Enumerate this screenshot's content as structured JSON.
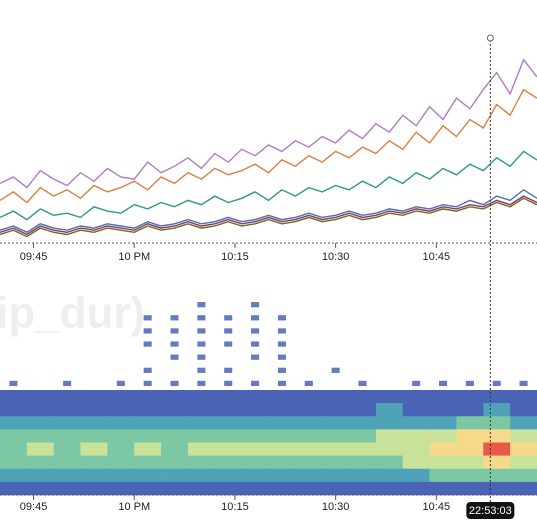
{
  "chart_data": [
    {
      "type": "line",
      "x": [
        "21:40",
        "21:42",
        "21:44",
        "21:46",
        "21:48",
        "21:50",
        "21:52",
        "21:54",
        "21:56",
        "21:58",
        "22:00",
        "22:02",
        "22:04",
        "22:06",
        "22:08",
        "22:10",
        "22:12",
        "22:14",
        "22:16",
        "22:18",
        "22:20",
        "22:22",
        "22:24",
        "22:26",
        "22:28",
        "22:30",
        "22:32",
        "22:34",
        "22:36",
        "22:38",
        "22:40",
        "22:42",
        "22:44",
        "22:46",
        "22:48",
        "22:50",
        "22:52",
        "22:54",
        "22:56",
        "22:58",
        "23:00"
      ],
      "xlim": [
        "21:40",
        "23:00"
      ],
      "xticks": [
        {
          "value": "21:45",
          "label": "09:45"
        },
        {
          "value": "22:00",
          "label": "10 PM"
        },
        {
          "value": "22:15",
          "label": "10:15"
        },
        {
          "value": "22:30",
          "label": "10:30"
        },
        {
          "value": "22:45",
          "label": "10:45"
        }
      ],
      "ylim": [
        0,
        100
      ],
      "series": [
        {
          "color": "#b07cc6",
          "values": [
            28,
            31,
            26,
            34,
            30,
            27,
            33,
            29,
            35,
            31,
            30,
            38,
            33,
            36,
            40,
            35,
            42,
            38,
            44,
            41,
            46,
            43,
            48,
            45,
            50,
            47,
            53,
            49,
            56,
            52,
            60,
            55,
            64,
            58,
            68,
            63,
            72,
            80,
            70,
            86,
            78
          ]
        },
        {
          "color": "#d9803f",
          "values": [
            20,
            24,
            19,
            26,
            22,
            25,
            21,
            27,
            24,
            26,
            29,
            25,
            31,
            28,
            33,
            30,
            35,
            32,
            34,
            37,
            33,
            39,
            36,
            41,
            38,
            43,
            40,
            45,
            42,
            48,
            44,
            52,
            47,
            55,
            50,
            58,
            54,
            65,
            60,
            72,
            68
          ]
        },
        {
          "color": "#2a9a8a",
          "values": [
            12,
            15,
            11,
            16,
            13,
            14,
            12,
            17,
            15,
            14,
            18,
            16,
            19,
            17,
            20,
            18,
            22,
            19,
            21,
            24,
            20,
            25,
            22,
            26,
            24,
            27,
            25,
            29,
            26,
            31,
            28,
            33,
            30,
            35,
            32,
            37,
            34,
            40,
            36,
            43,
            39
          ]
        },
        {
          "color": "#4a6fbf",
          "values": [
            6,
            8,
            5,
            9,
            7,
            6,
            8,
            7,
            9,
            8,
            7,
            10,
            8,
            9,
            11,
            9,
            10,
            12,
            10,
            11,
            13,
            11,
            12,
            14,
            12,
            13,
            15,
            13,
            14,
            16,
            15,
            17,
            16,
            18,
            17,
            20,
            18,
            22,
            20,
            25,
            21
          ]
        },
        {
          "color": "#8b3a5a",
          "values": [
            5,
            7,
            4,
            8,
            6,
            5,
            7,
            6,
            8,
            7,
            6,
            9,
            7,
            8,
            10,
            8,
            9,
            11,
            9,
            10,
            12,
            10,
            11,
            13,
            11,
            12,
            14,
            12,
            13,
            15,
            14,
            16,
            15,
            17,
            16,
            18,
            17,
            20,
            18,
            22,
            19
          ]
        },
        {
          "color": "#6b6b2a",
          "values": [
            4,
            6,
            3,
            7,
            5,
            4,
            6,
            5,
            7,
            6,
            5,
            8,
            6,
            7,
            9,
            7,
            8,
            10,
            8,
            9,
            11,
            9,
            10,
            12,
            10,
            11,
            13,
            11,
            12,
            14,
            13,
            15,
            14,
            16,
            15,
            17,
            16,
            19,
            17,
            21,
            18
          ]
        }
      ]
    },
    {
      "type": "heatmap",
      "title": "ip_dur)",
      "xlim": [
        "21:40",
        "23:00"
      ],
      "xticks": [
        {
          "value": "21:45",
          "label": "09:45"
        },
        {
          "value": "22:00",
          "label": "10 PM"
        },
        {
          "value": "22:15",
          "label": "10:15"
        },
        {
          "value": "22:30",
          "label": "10:30"
        },
        {
          "value": "22:45",
          "label": "10:45"
        }
      ],
      "colorscale": [
        "#4a64b5",
        "#4fa3b8",
        "#7cc8a4",
        "#c8e29a",
        "#f6d98a",
        "#e8594a"
      ],
      "values": [
        [
          0,
          0,
          0,
          0,
          0,
          0,
          0,
          0,
          0,
          0,
          0,
          0,
          0,
          0,
          0,
          0,
          0,
          0,
          0,
          0
        ],
        [
          0,
          0,
          0,
          0,
          0,
          0,
          0,
          1,
          0,
          1,
          0,
          0,
          0,
          0,
          0,
          0,
          0,
          0,
          0,
          0
        ],
        [
          0,
          0,
          0,
          0,
          0,
          1,
          1,
          1,
          1,
          1,
          1,
          0,
          0,
          0,
          0,
          0,
          0,
          0,
          0,
          0
        ],
        [
          0,
          0,
          0,
          0,
          0,
          1,
          1,
          1,
          1,
          1,
          1,
          0,
          0,
          0,
          0,
          0,
          0,
          0,
          0,
          0
        ],
        [
          0,
          0,
          0,
          0,
          0,
          1,
          1,
          1,
          1,
          1,
          1,
          0,
          0,
          0,
          0,
          0,
          0,
          0,
          0,
          0
        ],
        [
          0,
          0,
          0,
          0,
          0,
          0,
          1,
          1,
          0,
          1,
          1,
          0,
          0,
          0,
          0,
          0,
          0,
          0,
          0,
          0
        ],
        [
          0,
          0,
          0,
          0,
          0,
          1,
          0,
          1,
          1,
          0,
          1,
          0,
          1,
          0,
          0,
          0,
          0,
          0,
          0,
          0
        ],
        [
          1,
          0,
          1,
          0,
          1,
          1,
          1,
          1,
          1,
          1,
          1,
          1,
          0,
          1,
          0,
          1,
          1,
          1,
          1,
          1
        ],
        [
          1,
          1,
          1,
          1,
          1,
          1,
          1,
          1,
          1,
          1,
          1,
          1,
          1,
          1,
          1,
          1,
          1,
          1,
          1,
          1
        ],
        [
          1,
          1,
          1,
          1,
          1,
          1,
          1,
          1,
          1,
          1,
          1,
          1,
          1,
          1,
          2,
          1,
          1,
          1,
          2,
          1
        ],
        [
          2,
          2,
          2,
          2,
          2,
          2,
          2,
          2,
          2,
          2,
          2,
          2,
          2,
          2,
          2,
          2,
          2,
          3,
          3,
          2
        ],
        [
          3,
          3,
          3,
          3,
          3,
          3,
          3,
          3,
          3,
          3,
          3,
          3,
          3,
          3,
          4,
          4,
          4,
          5,
          5,
          4
        ],
        [
          3,
          4,
          3,
          4,
          3,
          4,
          3,
          4,
          4,
          4,
          4,
          4,
          4,
          4,
          4,
          4,
          5,
          5,
          6,
          5
        ],
        [
          3,
          3,
          3,
          3,
          3,
          3,
          3,
          3,
          3,
          3,
          3,
          3,
          3,
          3,
          3,
          4,
          4,
          4,
          5,
          4
        ],
        [
          2,
          2,
          2,
          2,
          2,
          2,
          2,
          2,
          2,
          2,
          2,
          2,
          2,
          2,
          2,
          2,
          3,
          3,
          3,
          3
        ],
        [
          1,
          1,
          1,
          1,
          1,
          1,
          1,
          1,
          1,
          1,
          1,
          1,
          1,
          1,
          1,
          1,
          1,
          1,
          1,
          1
        ]
      ],
      "cursor": "22:53:03"
    }
  ]
}
